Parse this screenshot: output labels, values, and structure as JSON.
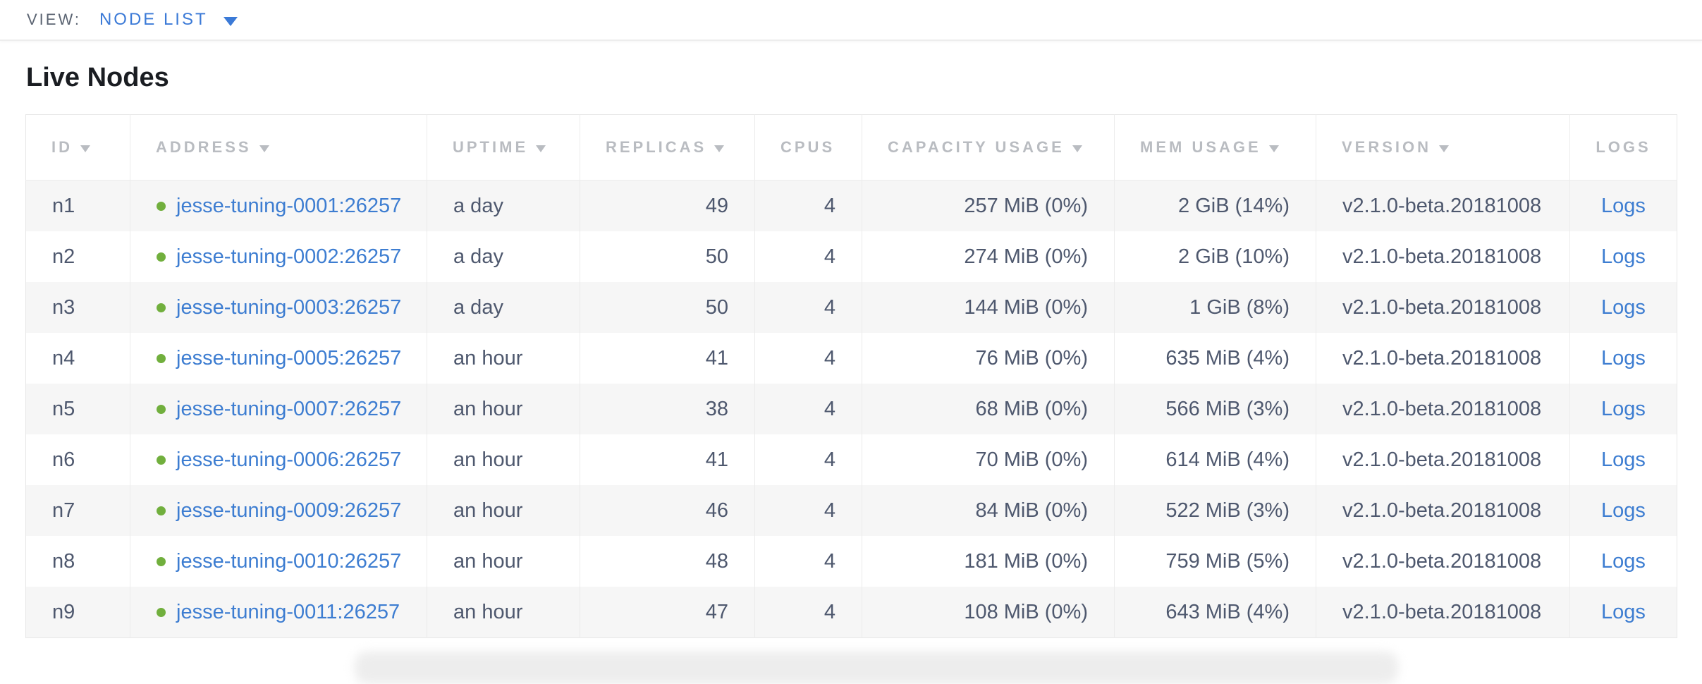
{
  "view_bar": {
    "label": "VIEW:",
    "selected": "NODE LIST"
  },
  "page": {
    "title": "Live Nodes"
  },
  "table": {
    "columns": [
      {
        "key": "id",
        "label": "ID",
        "sortable": true,
        "align": "left",
        "header_align": "left"
      },
      {
        "key": "address",
        "label": "ADDRESS",
        "sortable": true,
        "align": "left",
        "header_align": "left"
      },
      {
        "key": "uptime",
        "label": "UPTIME",
        "sortable": true,
        "align": "left",
        "header_align": "left"
      },
      {
        "key": "replicas",
        "label": "REPLICAS",
        "sortable": true,
        "align": "right",
        "header_align": "left"
      },
      {
        "key": "cpus",
        "label": "CPUS",
        "sortable": false,
        "align": "right",
        "header_align": "left"
      },
      {
        "key": "capacity",
        "label": "CAPACITY USAGE",
        "sortable": true,
        "align": "right",
        "header_align": "left"
      },
      {
        "key": "mem",
        "label": "MEM USAGE",
        "sortable": true,
        "align": "right",
        "header_align": "left"
      },
      {
        "key": "version",
        "label": "VERSION",
        "sortable": true,
        "align": "left",
        "header_align": "left"
      },
      {
        "key": "logs",
        "label": "LOGS",
        "sortable": false,
        "align": "center",
        "header_align": "center"
      }
    ],
    "rows": [
      {
        "id": "n1",
        "status": "live",
        "address": "jesse-tuning-0001:26257",
        "uptime": "a day",
        "replicas": "49",
        "cpus": "4",
        "capacity": "257 MiB (0%)",
        "mem": "2 GiB (14%)",
        "version": "v2.1.0-beta.20181008",
        "logs": "Logs"
      },
      {
        "id": "n2",
        "status": "live",
        "address": "jesse-tuning-0002:26257",
        "uptime": "a day",
        "replicas": "50",
        "cpus": "4",
        "capacity": "274 MiB (0%)",
        "mem": "2 GiB (10%)",
        "version": "v2.1.0-beta.20181008",
        "logs": "Logs"
      },
      {
        "id": "n3",
        "status": "live",
        "address": "jesse-tuning-0003:26257",
        "uptime": "a day",
        "replicas": "50",
        "cpus": "4",
        "capacity": "144 MiB (0%)",
        "mem": "1 GiB (8%)",
        "version": "v2.1.0-beta.20181008",
        "logs": "Logs"
      },
      {
        "id": "n4",
        "status": "live",
        "address": "jesse-tuning-0005:26257",
        "uptime": "an hour",
        "replicas": "41",
        "cpus": "4",
        "capacity": "76 MiB (0%)",
        "mem": "635 MiB (4%)",
        "version": "v2.1.0-beta.20181008",
        "logs": "Logs"
      },
      {
        "id": "n5",
        "status": "live",
        "address": "jesse-tuning-0007:26257",
        "uptime": "an hour",
        "replicas": "38",
        "cpus": "4",
        "capacity": "68 MiB (0%)",
        "mem": "566 MiB (3%)",
        "version": "v2.1.0-beta.20181008",
        "logs": "Logs"
      },
      {
        "id": "n6",
        "status": "live",
        "address": "jesse-tuning-0006:26257",
        "uptime": "an hour",
        "replicas": "41",
        "cpus": "4",
        "capacity": "70 MiB (0%)",
        "mem": "614 MiB (4%)",
        "version": "v2.1.0-beta.20181008",
        "logs": "Logs"
      },
      {
        "id": "n7",
        "status": "live",
        "address": "jesse-tuning-0009:26257",
        "uptime": "an hour",
        "replicas": "46",
        "cpus": "4",
        "capacity": "84 MiB (0%)",
        "mem": "522 MiB (3%)",
        "version": "v2.1.0-beta.20181008",
        "logs": "Logs"
      },
      {
        "id": "n8",
        "status": "live",
        "address": "jesse-tuning-0010:26257",
        "uptime": "an hour",
        "replicas": "48",
        "cpus": "4",
        "capacity": "181 MiB (0%)",
        "mem": "759 MiB (5%)",
        "version": "v2.1.0-beta.20181008",
        "logs": "Logs"
      },
      {
        "id": "n9",
        "status": "live",
        "address": "jesse-tuning-0011:26257",
        "uptime": "an hour",
        "replicas": "47",
        "cpus": "4",
        "capacity": "108 MiB (0%)",
        "mem": "643 MiB (4%)",
        "version": "v2.1.0-beta.20181008",
        "logs": "Logs"
      }
    ]
  },
  "icons": {
    "view_dropdown_caret": "chevron-down-icon",
    "sort_caret": "sort-descending-icon",
    "live_status": "live-node-dot-icon"
  },
  "colors": {
    "accent_blue": "#3b7ad7",
    "link_blue": "#3d7dd1",
    "live_green": "#71af3d",
    "header_gray": "#b9bcc1",
    "cell_text": "#4e586e",
    "row_stripe": "#f6f6f6",
    "border": "#e7e7e7",
    "title_text": "#1a1d22"
  }
}
